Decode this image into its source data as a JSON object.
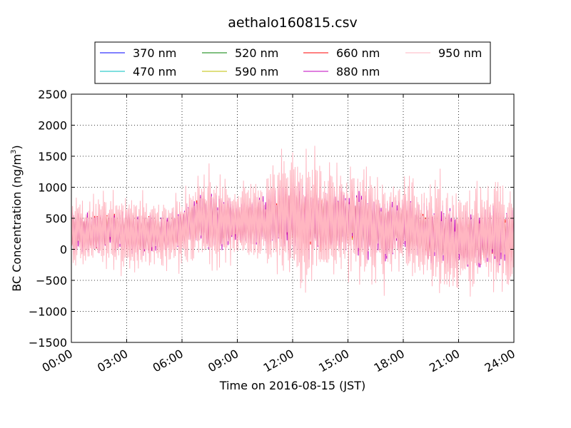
{
  "chart_data": {
    "type": "line",
    "title": "aethalo160815.csv",
    "xlabel": "Time on 2016-08-15 (JST)",
    "ylabel_main": "BC Concentration (ng/m",
    "ylabel_sup": "3",
    "ylabel_end": ")",
    "x_tick_labels": [
      "00:00",
      "03:00",
      "06:00",
      "09:00",
      "12:00",
      "15:00",
      "18:00",
      "21:00",
      "24:00"
    ],
    "x_range_hours": [
      0,
      24
    ],
    "ylim": [
      -1500,
      2500
    ],
    "y_ticks": [
      -1500,
      -1000,
      -500,
      0,
      500,
      1000,
      1500,
      2000,
      2500
    ],
    "grid": true,
    "legend_position": "top-center",
    "series": [
      {
        "name": "370 nm",
        "color": "#0000ff"
      },
      {
        "name": "470 nm",
        "color": "#00bfbf"
      },
      {
        "name": "520 nm",
        "color": "#008000"
      },
      {
        "name": "590 nm",
        "color": "#bfbf00"
      },
      {
        "name": "660 nm",
        "color": "#ff0000"
      },
      {
        "name": "880 nm",
        "color": "#bf00bf"
      },
      {
        "name": "950 nm",
        "color": "#ffb6c1"
      }
    ],
    "profile_hours": [
      0,
      1,
      2,
      3,
      4,
      5,
      6,
      7,
      8,
      9,
      10,
      11,
      12,
      13,
      14,
      15,
      16,
      17,
      18,
      19,
      20,
      21,
      22,
      23,
      24
    ],
    "profile_mean": [
      280,
      260,
      300,
      280,
      260,
      250,
      350,
      500,
      450,
      420,
      450,
      480,
      500,
      450,
      460,
      470,
      380,
      320,
      380,
      260,
      200,
      150,
      160,
      180,
      200
    ],
    "profile_amplitude_950nm": [
      700,
      600,
      700,
      700,
      700,
      600,
      650,
      850,
      900,
      700,
      800,
      900,
      1300,
      1200,
      1000,
      1000,
      1100,
      1000,
      900,
      900,
      1000,
      900,
      900,
      1000,
      1000
    ]
  }
}
